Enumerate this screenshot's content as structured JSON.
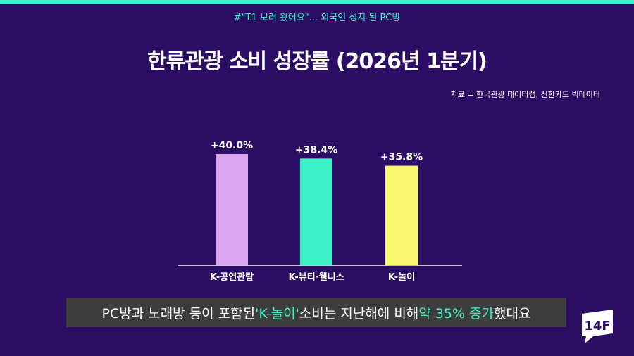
{
  "header": {
    "topic": "#\"T1 보러 왔어요\"... 외국인 성지 된 PC방",
    "progress": 1.0
  },
  "chart_data": {
    "type": "bar",
    "title": "한류관광 소비 성장률 (2026년 1분기)",
    "source": "자료 = 한국관광 데이터랩, 신한카드 빅데이터",
    "categories": [
      "K-공연관람",
      "K-뷰티·웰니스",
      "K-놀이"
    ],
    "values": [
      40.0,
      38.4,
      35.8
    ],
    "value_labels": [
      "+40.0%",
      "+38.4%",
      "+35.8%"
    ],
    "colors": [
      "#dba4ef",
      "#3ff0c8",
      "#f9f871"
    ],
    "ylim": [
      0,
      40
    ],
    "grid": false
  },
  "caption": {
    "part1": "PC방과 노래방 등이 포함된 ",
    "highlight1": "'K-놀이'",
    "part2": " 소비는 지난해에 비해 ",
    "highlight2": "약 35% 증가",
    "part3": "했대요"
  },
  "logo": {
    "text": "14F",
    "color": "#ffffff"
  }
}
